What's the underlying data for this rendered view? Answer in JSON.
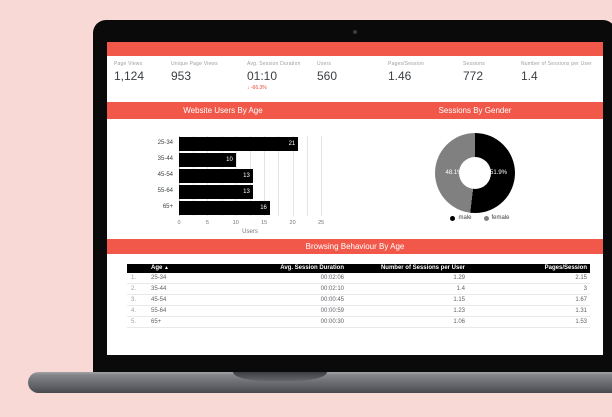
{
  "colors": {
    "background": "#f9d9d5",
    "accent": "#f2584a",
    "bar_fill": "#000000",
    "male": "#000000",
    "female": "#808080",
    "delta_negative": "#ea4335"
  },
  "kpis": [
    {
      "label": "Page Views",
      "value": "1,124"
    },
    {
      "label": "Unique Page Views",
      "value": "953"
    },
    {
      "label": "Avg. Session Duration",
      "value": "01:10",
      "delta": "↓ -66.3%"
    },
    {
      "label": "Users",
      "value": "560"
    },
    {
      "label": "Pages/Session",
      "value": "1.46"
    },
    {
      "label": "Sessions",
      "value": "772"
    },
    {
      "label": "Number of Sessions per User",
      "value": "1.4"
    }
  ],
  "sections": {
    "bar_chart_title": "Website Users By Age",
    "donut_title": "Sessions By Gender",
    "table_title": "Browsing Behaviour By Age"
  },
  "chart_data": [
    {
      "type": "bar",
      "title": "Website Users By Age",
      "orientation": "horizontal",
      "categories": [
        "25-34",
        "35-44",
        "45-54",
        "55-64",
        "65+"
      ],
      "values": [
        21,
        10,
        13,
        13,
        16
      ],
      "xlabel": "Users",
      "ylabel": "",
      "xlim": [
        0,
        25
      ],
      "xticks": [
        0,
        5,
        10,
        15,
        20,
        25
      ],
      "grid": true,
      "bar_color": "#000000"
    },
    {
      "type": "pie",
      "title": "Sessions By Gender",
      "donut": true,
      "labels": [
        "male",
        "female"
      ],
      "values": [
        51.9,
        48.1
      ],
      "display_labels": {
        "male": "51.9%",
        "female": "48.1%"
      },
      "colors": [
        "#000000",
        "#808080"
      ],
      "legend_position": "bottom"
    },
    {
      "type": "table",
      "title": "Browsing Behaviour By Age",
      "columns": [
        "",
        "Age",
        "Avg. Session Duration",
        "Number of Sessions per User",
        "Pages/Session"
      ],
      "sort_column": "Age",
      "sort_indicator": "▲",
      "rows": [
        [
          "1.",
          "25-34",
          "00:02:06",
          "1.29",
          "2.15"
        ],
        [
          "2.",
          "35-44",
          "00:02:10",
          "1.4",
          "3"
        ],
        [
          "3.",
          "45-54",
          "00:00:45",
          "1.15",
          "1.67"
        ],
        [
          "4.",
          "55-64",
          "00:00:59",
          "1.23",
          "1.31"
        ],
        [
          "5.",
          "65+",
          "00:00:30",
          "1.06",
          "1.53"
        ]
      ]
    }
  ]
}
